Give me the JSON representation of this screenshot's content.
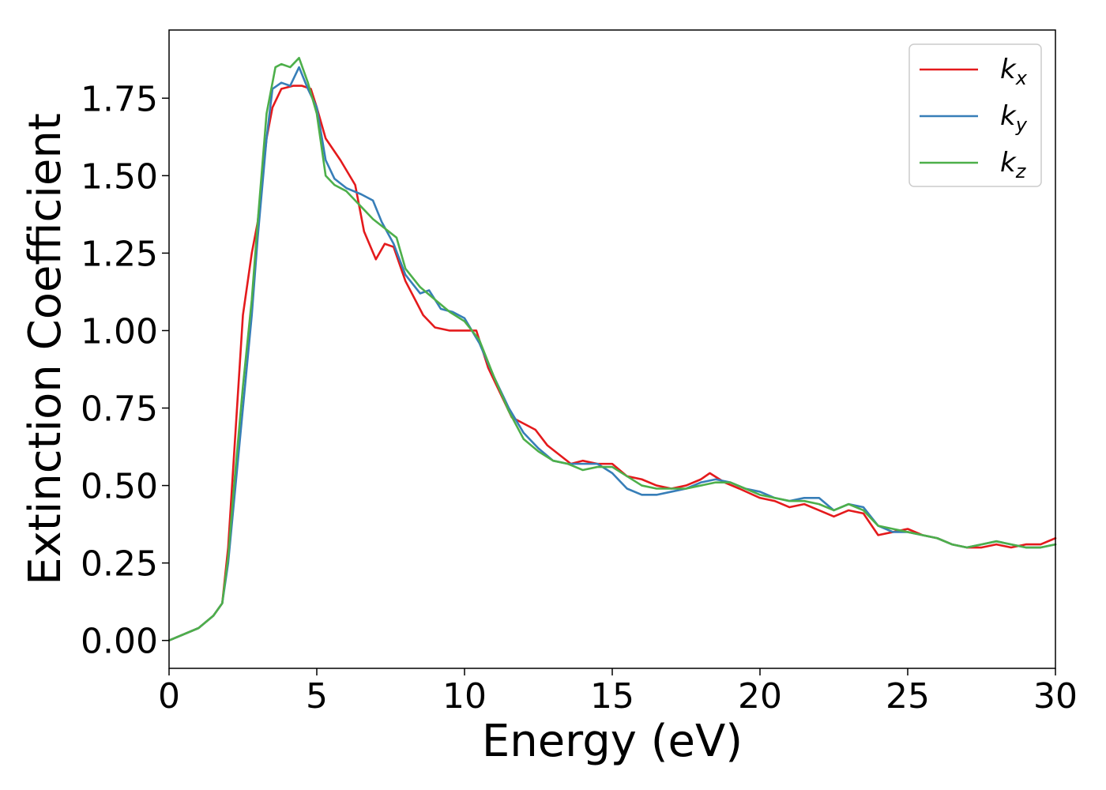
{
  "chart_data": {
    "type": "line",
    "title": "",
    "xlabel": "Energy (eV)",
    "ylabel": "Extinction Coefficient",
    "xlim": [
      0,
      30
    ],
    "ylim": [
      -0.09,
      1.97
    ],
    "xticks": [
      0,
      5,
      10,
      15,
      20,
      25,
      30
    ],
    "xtick_labels": [
      "0",
      "5",
      "10",
      "15",
      "20",
      "25",
      "30"
    ],
    "yticks": [
      0,
      0.25,
      0.5,
      0.75,
      1.0,
      1.25,
      1.5,
      1.75
    ],
    "ytick_labels": [
      "0.00",
      "0.25",
      "0.50",
      "0.75",
      "1.00",
      "1.25",
      "1.50",
      "1.75"
    ],
    "grid": false,
    "legend_position": "top-right",
    "series": [
      {
        "name": "k_x",
        "legend_base": "k",
        "legend_sub": "x",
        "color": "#e41a1c",
        "x": [
          0,
          1,
          1.5,
          1.8,
          2.0,
          2.2,
          2.5,
          2.8,
          3.0,
          3.3,
          3.5,
          3.8,
          4.2,
          4.5,
          4.8,
          5.0,
          5.3,
          5.8,
          6.3,
          6.6,
          7.0,
          7.3,
          7.6,
          8.0,
          8.6,
          9.0,
          9.5,
          10.0,
          10.4,
          10.8,
          11.2,
          11.6,
          12.0,
          12.4,
          12.8,
          13.2,
          13.6,
          14.0,
          14.5,
          15.0,
          15.5,
          16.0,
          16.5,
          17.0,
          17.5,
          18.0,
          18.3,
          18.8,
          19.3,
          20.0,
          20.5,
          21.0,
          21.5,
          22.0,
          22.5,
          23.0,
          23.5,
          24.0,
          24.5,
          25.0,
          25.5,
          26.0,
          26.5,
          27.0,
          27.5,
          28.0,
          28.5,
          29.0,
          29.5,
          30.0
        ],
        "y": [
          0,
          0.04,
          0.08,
          0.12,
          0.3,
          0.6,
          1.05,
          1.25,
          1.35,
          1.62,
          1.72,
          1.78,
          1.79,
          1.79,
          1.78,
          1.72,
          1.62,
          1.55,
          1.47,
          1.32,
          1.23,
          1.28,
          1.27,
          1.16,
          1.05,
          1.01,
          1.0,
          1.0,
          1.0,
          0.88,
          0.8,
          0.72,
          0.7,
          0.68,
          0.63,
          0.6,
          0.57,
          0.58,
          0.57,
          0.57,
          0.53,
          0.52,
          0.5,
          0.49,
          0.5,
          0.52,
          0.54,
          0.51,
          0.49,
          0.46,
          0.45,
          0.43,
          0.44,
          0.42,
          0.4,
          0.42,
          0.41,
          0.34,
          0.35,
          0.36,
          0.34,
          0.33,
          0.31,
          0.3,
          0.3,
          0.31,
          0.3,
          0.31,
          0.31,
          0.33
        ]
      },
      {
        "name": "k_y",
        "legend_base": "k",
        "legend_sub": "y",
        "color": "#377eb8",
        "x": [
          0,
          1,
          1.5,
          1.8,
          2.0,
          2.2,
          2.5,
          2.8,
          3.0,
          3.3,
          3.5,
          3.8,
          4.1,
          4.4,
          4.7,
          5.0,
          5.3,
          5.6,
          6.0,
          6.5,
          6.9,
          7.2,
          7.6,
          8.0,
          8.5,
          8.8,
          9.2,
          9.6,
          10.0,
          10.5,
          11.0,
          11.5,
          12.0,
          12.5,
          13.0,
          13.5,
          14.0,
          14.5,
          15.0,
          15.5,
          16.0,
          16.5,
          17.0,
          17.5,
          18.0,
          18.5,
          19.0,
          19.5,
          20.0,
          20.5,
          21.0,
          21.5,
          22.0,
          22.5,
          23.0,
          23.5,
          24.0,
          24.5,
          25.0,
          25.5,
          26.0,
          26.5,
          27.0,
          27.5,
          28.0,
          28.5,
          29.0,
          29.5,
          30.0
        ],
        "y": [
          0,
          0.04,
          0.08,
          0.12,
          0.25,
          0.45,
          0.75,
          1.05,
          1.3,
          1.62,
          1.78,
          1.8,
          1.79,
          1.85,
          1.78,
          1.72,
          1.55,
          1.49,
          1.46,
          1.44,
          1.42,
          1.35,
          1.28,
          1.18,
          1.12,
          1.13,
          1.07,
          1.06,
          1.04,
          0.96,
          0.85,
          0.75,
          0.67,
          0.62,
          0.58,
          0.57,
          0.57,
          0.57,
          0.54,
          0.49,
          0.47,
          0.47,
          0.48,
          0.49,
          0.51,
          0.52,
          0.51,
          0.49,
          0.48,
          0.46,
          0.45,
          0.46,
          0.46,
          0.42,
          0.44,
          0.43,
          0.37,
          0.35,
          0.35,
          0.34,
          0.33,
          0.31,
          0.3,
          0.31,
          0.32,
          0.31,
          0.3,
          0.3,
          0.31
        ]
      },
      {
        "name": "k_z",
        "legend_base": "k",
        "legend_sub": "z",
        "color": "#4daf4a",
        "x": [
          0,
          1,
          1.5,
          1.8,
          2.0,
          2.2,
          2.5,
          2.8,
          3.0,
          3.3,
          3.6,
          3.8,
          4.1,
          4.4,
          4.7,
          5.0,
          5.3,
          5.6,
          6.0,
          6.5,
          6.9,
          7.3,
          7.7,
          8.0,
          8.5,
          9.0,
          9.5,
          10.0,
          10.5,
          11.0,
          11.5,
          12.0,
          12.5,
          13.0,
          13.5,
          14.0,
          14.5,
          15.0,
          15.5,
          16.0,
          16.5,
          17.0,
          17.5,
          18.0,
          18.5,
          19.0,
          19.5,
          20.0,
          20.5,
          21.0,
          21.5,
          22.0,
          22.5,
          23.0,
          23.5,
          24.0,
          24.5,
          25.0,
          25.5,
          26.0,
          26.5,
          27.0,
          27.5,
          28.0,
          28.5,
          29.0,
          29.5,
          30.0
        ],
        "y": [
          0,
          0.04,
          0.08,
          0.12,
          0.27,
          0.5,
          0.82,
          1.1,
          1.35,
          1.7,
          1.85,
          1.86,
          1.85,
          1.88,
          1.8,
          1.7,
          1.5,
          1.47,
          1.45,
          1.4,
          1.36,
          1.33,
          1.3,
          1.2,
          1.14,
          1.1,
          1.06,
          1.03,
          0.97,
          0.85,
          0.74,
          0.65,
          0.61,
          0.58,
          0.57,
          0.55,
          0.56,
          0.56,
          0.53,
          0.5,
          0.49,
          0.49,
          0.49,
          0.5,
          0.51,
          0.51,
          0.49,
          0.47,
          0.46,
          0.45,
          0.45,
          0.44,
          0.42,
          0.44,
          0.42,
          0.37,
          0.36,
          0.35,
          0.34,
          0.33,
          0.31,
          0.3,
          0.31,
          0.32,
          0.31,
          0.3,
          0.3,
          0.31
        ]
      }
    ]
  }
}
